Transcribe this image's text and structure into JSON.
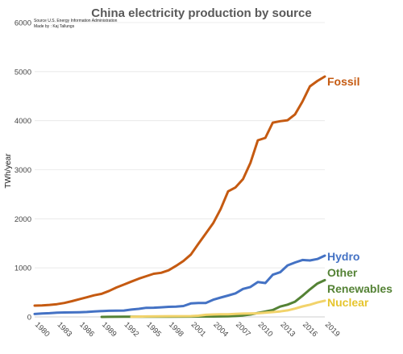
{
  "chart_data": {
    "type": "line",
    "title": "China electricity production by source",
    "source_lines": [
      "Source U.S. Energy Information Administration",
      "Made by : Kaj Tallungs"
    ],
    "ylabel": "TWh/year",
    "xlabel": "",
    "ylim": [
      0,
      6000
    ],
    "xlim": [
      1980,
      2019
    ],
    "yticks": [
      0,
      1000,
      2000,
      3000,
      4000,
      5000,
      6000
    ],
    "xticks": [
      1980,
      1983,
      1986,
      1989,
      1992,
      1995,
      1998,
      2001,
      2004,
      2007,
      2010,
      2013,
      2016,
      2019
    ],
    "grid": "horizontal",
    "legend": "inline labels at right end of lines",
    "series": [
      {
        "name": "Fossil",
        "color": "#c55a11",
        "x": [
          1980,
          1981,
          1982,
          1983,
          1984,
          1985,
          1986,
          1987,
          1988,
          1989,
          1990,
          1991,
          1992,
          1993,
          1994,
          1995,
          1996,
          1997,
          1998,
          1999,
          2000,
          2001,
          2002,
          2003,
          2004,
          2005,
          2006,
          2007,
          2008,
          2009,
          2010,
          2011,
          2012,
          2013,
          2014,
          2015,
          2016,
          2017,
          2018,
          2019
        ],
        "values": [
          230,
          235,
          245,
          260,
          285,
          320,
          360,
          400,
          440,
          470,
          530,
          600,
          660,
          720,
          780,
          830,
          880,
          900,
          950,
          1040,
          1140,
          1270,
          1490,
          1700,
          1910,
          2200,
          2560,
          2640,
          2810,
          3140,
          3600,
          3650,
          3960,
          3990,
          4010,
          4130,
          4390,
          4700,
          4810,
          4900
        ]
      },
      {
        "name": "Hydro",
        "color": "#4472c4",
        "x": [
          1980,
          1981,
          1982,
          1983,
          1984,
          1985,
          1986,
          1987,
          1988,
          1989,
          1990,
          1991,
          1992,
          1993,
          1994,
          1995,
          1996,
          1997,
          1998,
          1999,
          2000,
          2001,
          2002,
          2003,
          2004,
          2005,
          2006,
          2007,
          2008,
          2009,
          2010,
          2011,
          2012,
          2013,
          2014,
          2015,
          2016,
          2017,
          2018,
          2019
        ],
        "values": [
          60,
          70,
          75,
          85,
          90,
          92,
          95,
          100,
          110,
          118,
          125,
          128,
          130,
          150,
          165,
          185,
          188,
          195,
          205,
          210,
          222,
          275,
          285,
          285,
          350,
          395,
          435,
          480,
          570,
          610,
          710,
          690,
          860,
          910,
          1050,
          1110,
          1160,
          1150,
          1180,
          1250
        ]
      },
      {
        "name": "Other",
        "color": "#548235",
        "x": [
          1989,
          1990,
          1992,
          1995,
          1998,
          2001,
          2004,
          2006,
          2007,
          2008,
          2009,
          2010,
          2011,
          2012,
          2013,
          2014,
          2015,
          2016,
          2017,
          2018,
          2019
        ],
        "values": [
          0,
          2,
          3,
          4,
          5,
          6,
          8,
          12,
          18,
          30,
          50,
          80,
          110,
          140,
          210,
          250,
          310,
          430,
          560,
          680,
          750
        ]
      },
      {
        "name": "Renewables",
        "color": "#548235",
        "x": [],
        "values": []
      },
      {
        "name": "Nuclear",
        "color": "#f2d36b",
        "x": [
          1993,
          1995,
          1998,
          2001,
          2002,
          2003,
          2004,
          2005,
          2006,
          2007,
          2008,
          2009,
          2010,
          2011,
          2012,
          2013,
          2014,
          2015,
          2016,
          2017,
          2018,
          2019
        ],
        "values": [
          2,
          10,
          14,
          17,
          25,
          43,
          50,
          53,
          55,
          62,
          68,
          70,
          74,
          86,
          98,
          112,
          133,
          170,
          214,
          248,
          295,
          330
        ]
      }
    ]
  }
}
